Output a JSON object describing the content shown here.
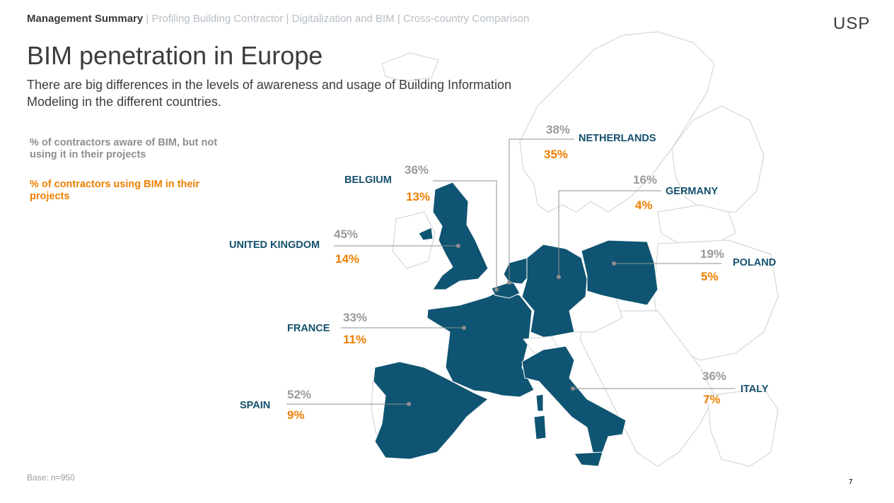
{
  "header": {
    "breadcrumb_active": "Management Summary",
    "breadcrumb_rest": "| Profiling Building Contractor | Digitalization and BIM | Cross-country Comparison",
    "logo": "USP"
  },
  "title": "BIM penetration in Europe",
  "subtitle": "There are big differences in the levels of awareness and usage of Building Information Modeling in the different countries.",
  "legend": {
    "aware_label": "% of contractors aware of BIM, but not using it in their projects",
    "using_label": "% of contractors using BIM in their projects"
  },
  "colors": {
    "highlight_country": "#0f5472",
    "base_map": "#ffffff",
    "base_border": "#cfd4d8",
    "aware": "#9a9a9a",
    "using": "#ee7f00",
    "country_label": "#14506e"
  },
  "countries": {
    "netherlands": {
      "name": "NETHERLANDS",
      "aware": "38%",
      "using": "35%"
    },
    "belgium": {
      "name": "BELGIUM",
      "aware": "36%",
      "using": "13%"
    },
    "germany": {
      "name": "GERMANY",
      "aware": "16%",
      "using": "4%"
    },
    "uk": {
      "name": "UNITED KINGDOM",
      "aware": "45%",
      "using": "14%"
    },
    "poland": {
      "name": "POLAND",
      "aware": "19%",
      "using": "5%"
    },
    "france": {
      "name": "FRANCE",
      "aware": "33%",
      "using": "11%"
    },
    "italy": {
      "name": "ITALY",
      "aware": "36%",
      "using": "7%"
    },
    "spain": {
      "name": "SPAIN",
      "aware": "52%",
      "using": "9%"
    }
  },
  "footer": {
    "base": "Base: n=950",
    "page": "7"
  }
}
